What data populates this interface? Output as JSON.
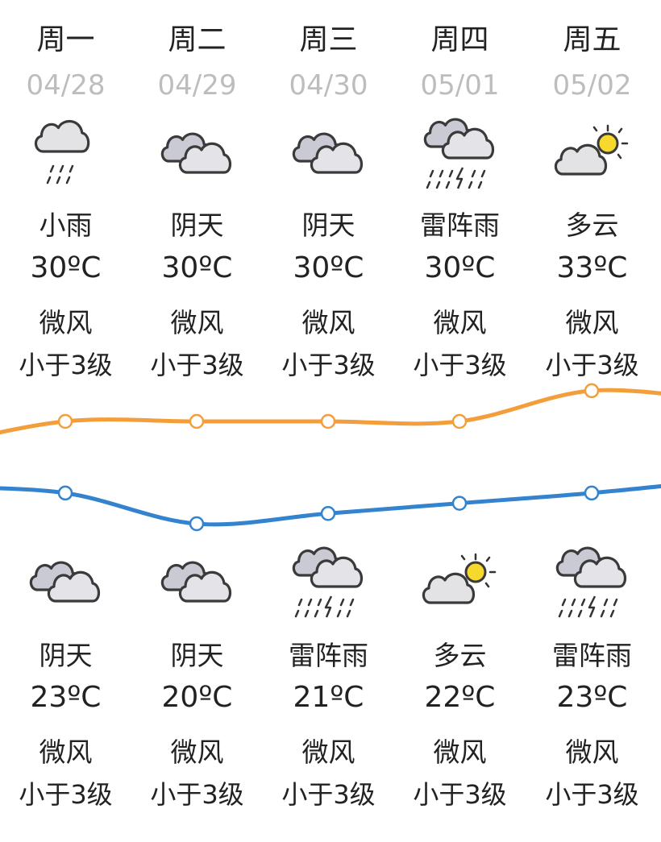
{
  "colors": {
    "high": "#F49E3B",
    "low": "#3483CE",
    "date": "#BDBDBD"
  },
  "days": [
    {
      "day": "周一",
      "date": "04/28",
      "day_weather": {
        "icon": "light-rain-icon",
        "cond": "小雨",
        "temp": "30ºC",
        "wind": "微风",
        "level": "小于3级"
      },
      "night_weather": {
        "icon": "overcast-icon",
        "cond": "阴天",
        "temp": "23ºC",
        "wind": "微风",
        "level": "小于3级"
      }
    },
    {
      "day": "周二",
      "date": "04/29",
      "day_weather": {
        "icon": "overcast-icon",
        "cond": "阴天",
        "temp": "30ºC",
        "wind": "微风",
        "level": "小于3级"
      },
      "night_weather": {
        "icon": "overcast-icon",
        "cond": "阴天",
        "temp": "20ºC",
        "wind": "微风",
        "level": "小于3级"
      }
    },
    {
      "day": "周三",
      "date": "04/30",
      "day_weather": {
        "icon": "overcast-icon",
        "cond": "阴天",
        "temp": "30ºC",
        "wind": "微风",
        "level": "小于3级"
      },
      "night_weather": {
        "icon": "thunderstorm-icon",
        "cond": "雷阵雨",
        "temp": "21ºC",
        "wind": "微风",
        "level": "小于3级"
      }
    },
    {
      "day": "周四",
      "date": "05/01",
      "day_weather": {
        "icon": "thunderstorm-icon",
        "cond": "雷阵雨",
        "temp": "30ºC",
        "wind": "微风",
        "level": "小于3级"
      },
      "night_weather": {
        "icon": "partly-cloudy-icon",
        "cond": "多云",
        "temp": "22ºC",
        "wind": "微风",
        "level": "小于3级"
      }
    },
    {
      "day": "周五",
      "date": "05/02",
      "day_weather": {
        "icon": "partly-cloudy-icon",
        "cond": "多云",
        "temp": "33ºC",
        "wind": "微风",
        "level": "小于3级"
      },
      "night_weather": {
        "icon": "thunderstorm-icon",
        "cond": "雷阵雨",
        "temp": "23ºC",
        "wind": "微风",
        "level": "小于3级"
      }
    }
  ],
  "chart_data": {
    "type": "line",
    "categories": [
      "04/28",
      "04/29",
      "04/30",
      "05/01",
      "05/02"
    ],
    "series": [
      {
        "values": [
          30,
          30,
          30,
          30,
          33
        ],
        "color": "#F49E3B"
      },
      {
        "values": [
          23,
          20,
          21,
          22,
          23
        ],
        "color": "#3483CE"
      }
    ],
    "grid": false
  }
}
